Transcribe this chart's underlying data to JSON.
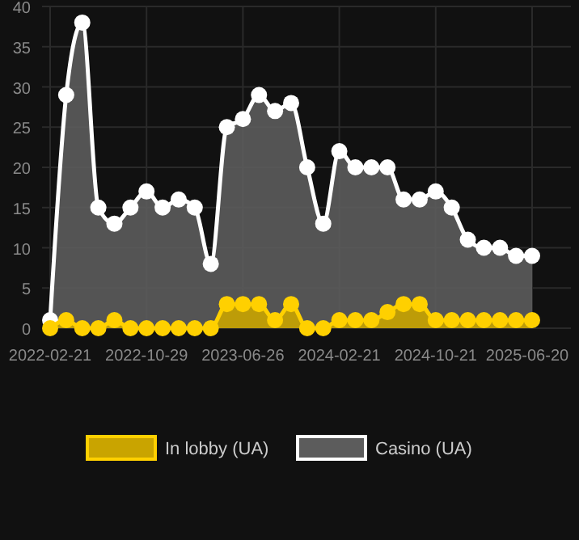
{
  "chart_data": {
    "type": "area",
    "categories": [
      "2022-02-21",
      null,
      null,
      null,
      null,
      null,
      "2022-10-29",
      null,
      null,
      null,
      null,
      null,
      "2023-06-26",
      null,
      null,
      null,
      null,
      null,
      "2024-02-21",
      null,
      null,
      null,
      null,
      null,
      "2024-10-21",
      null,
      null,
      null,
      null,
      null,
      "2025-06-20"
    ],
    "series": [
      {
        "name": "In lobby (UA)",
        "color": "#ffd000",
        "values": [
          0,
          1,
          0,
          0,
          1,
          0,
          0,
          0,
          0,
          0,
          0,
          3,
          3,
          3,
          1,
          3,
          0,
          0,
          1,
          1,
          1,
          2,
          3,
          3,
          1,
          1,
          1,
          1,
          1,
          1,
          1
        ]
      },
      {
        "name": "Casino (UA)",
        "color": "#ffffff",
        "values": [
          1,
          29,
          38,
          15,
          13,
          15,
          17,
          15,
          16,
          15,
          8,
          25,
          26,
          29,
          27,
          28,
          20,
          13,
          22,
          20,
          20,
          20,
          16,
          16,
          17,
          15,
          11,
          10,
          10,
          9,
          9
        ]
      }
    ],
    "ylim": [
      0,
      40
    ],
    "yticks": [
      0,
      5,
      10,
      15,
      20,
      25,
      30,
      35,
      40
    ],
    "grid": true,
    "legend": "bottom",
    "marker": "circle"
  }
}
